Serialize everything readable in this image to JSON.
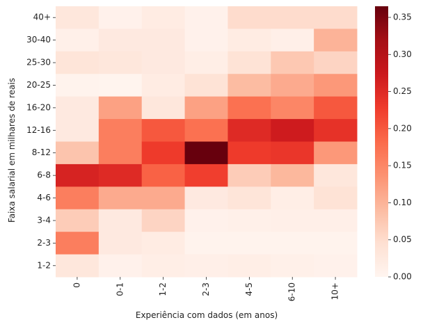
{
  "chart_data": {
    "type": "heatmap",
    "title": "",
    "xlabel": "Experiência com dados (em anos)",
    "ylabel": "Faixa salarial em milhares de reais",
    "x_categories": [
      "0",
      "0-1",
      "1-2",
      "2-3",
      "4-5",
      "6-10",
      "10+"
    ],
    "y_categories": [
      "40+",
      "30-40",
      "25-30",
      "20-25",
      "16-20",
      "12-16",
      "8-12",
      "6-8",
      "4-6",
      "3-4",
      "2-3",
      "1-2"
    ],
    "values": [
      [
        0.03,
        0.008,
        0.02,
        0.008,
        0.05,
        0.05,
        0.05
      ],
      [
        0.01,
        0.025,
        0.025,
        0.008,
        0.02,
        0.012,
        0.1
      ],
      [
        0.035,
        0.03,
        0.025,
        0.015,
        0.04,
        0.075,
        0.06
      ],
      [
        0.005,
        0.003,
        0.02,
        0.04,
        0.09,
        0.11,
        0.13
      ],
      [
        0.025,
        0.12,
        0.03,
        0.12,
        0.175,
        0.15,
        0.2
      ],
      [
        0.025,
        0.16,
        0.2,
        0.175,
        0.25,
        0.27,
        0.24
      ],
      [
        0.08,
        0.16,
        0.23,
        0.365,
        0.23,
        0.235,
        0.13
      ],
      [
        0.26,
        0.25,
        0.19,
        0.225,
        0.07,
        0.095,
        0.03
      ],
      [
        0.16,
        0.11,
        0.11,
        0.025,
        0.035,
        0.015,
        0.04
      ],
      [
        0.07,
        0.025,
        0.06,
        0.008,
        0.01,
        0.012,
        0.012
      ],
      [
        0.16,
        0.025,
        0.02,
        0.005,
        0.005,
        0.005,
        0.005
      ],
      [
        0.03,
        0.008,
        0.015,
        0.012,
        0.015,
        0.01,
        0.008
      ]
    ],
    "colorbar": {
      "colormap": "Reds",
      "range": [
        0.0,
        0.365
      ],
      "ticks": [
        0.0,
        0.05,
        0.1,
        0.15,
        0.2,
        0.25,
        0.3,
        0.35
      ],
      "tick_labels": [
        "0.00",
        "0.05",
        "0.10",
        "0.15",
        "0.20",
        "0.25",
        "0.30",
        "0.35"
      ]
    },
    "grid": false,
    "legend": "colorbar-right"
  }
}
